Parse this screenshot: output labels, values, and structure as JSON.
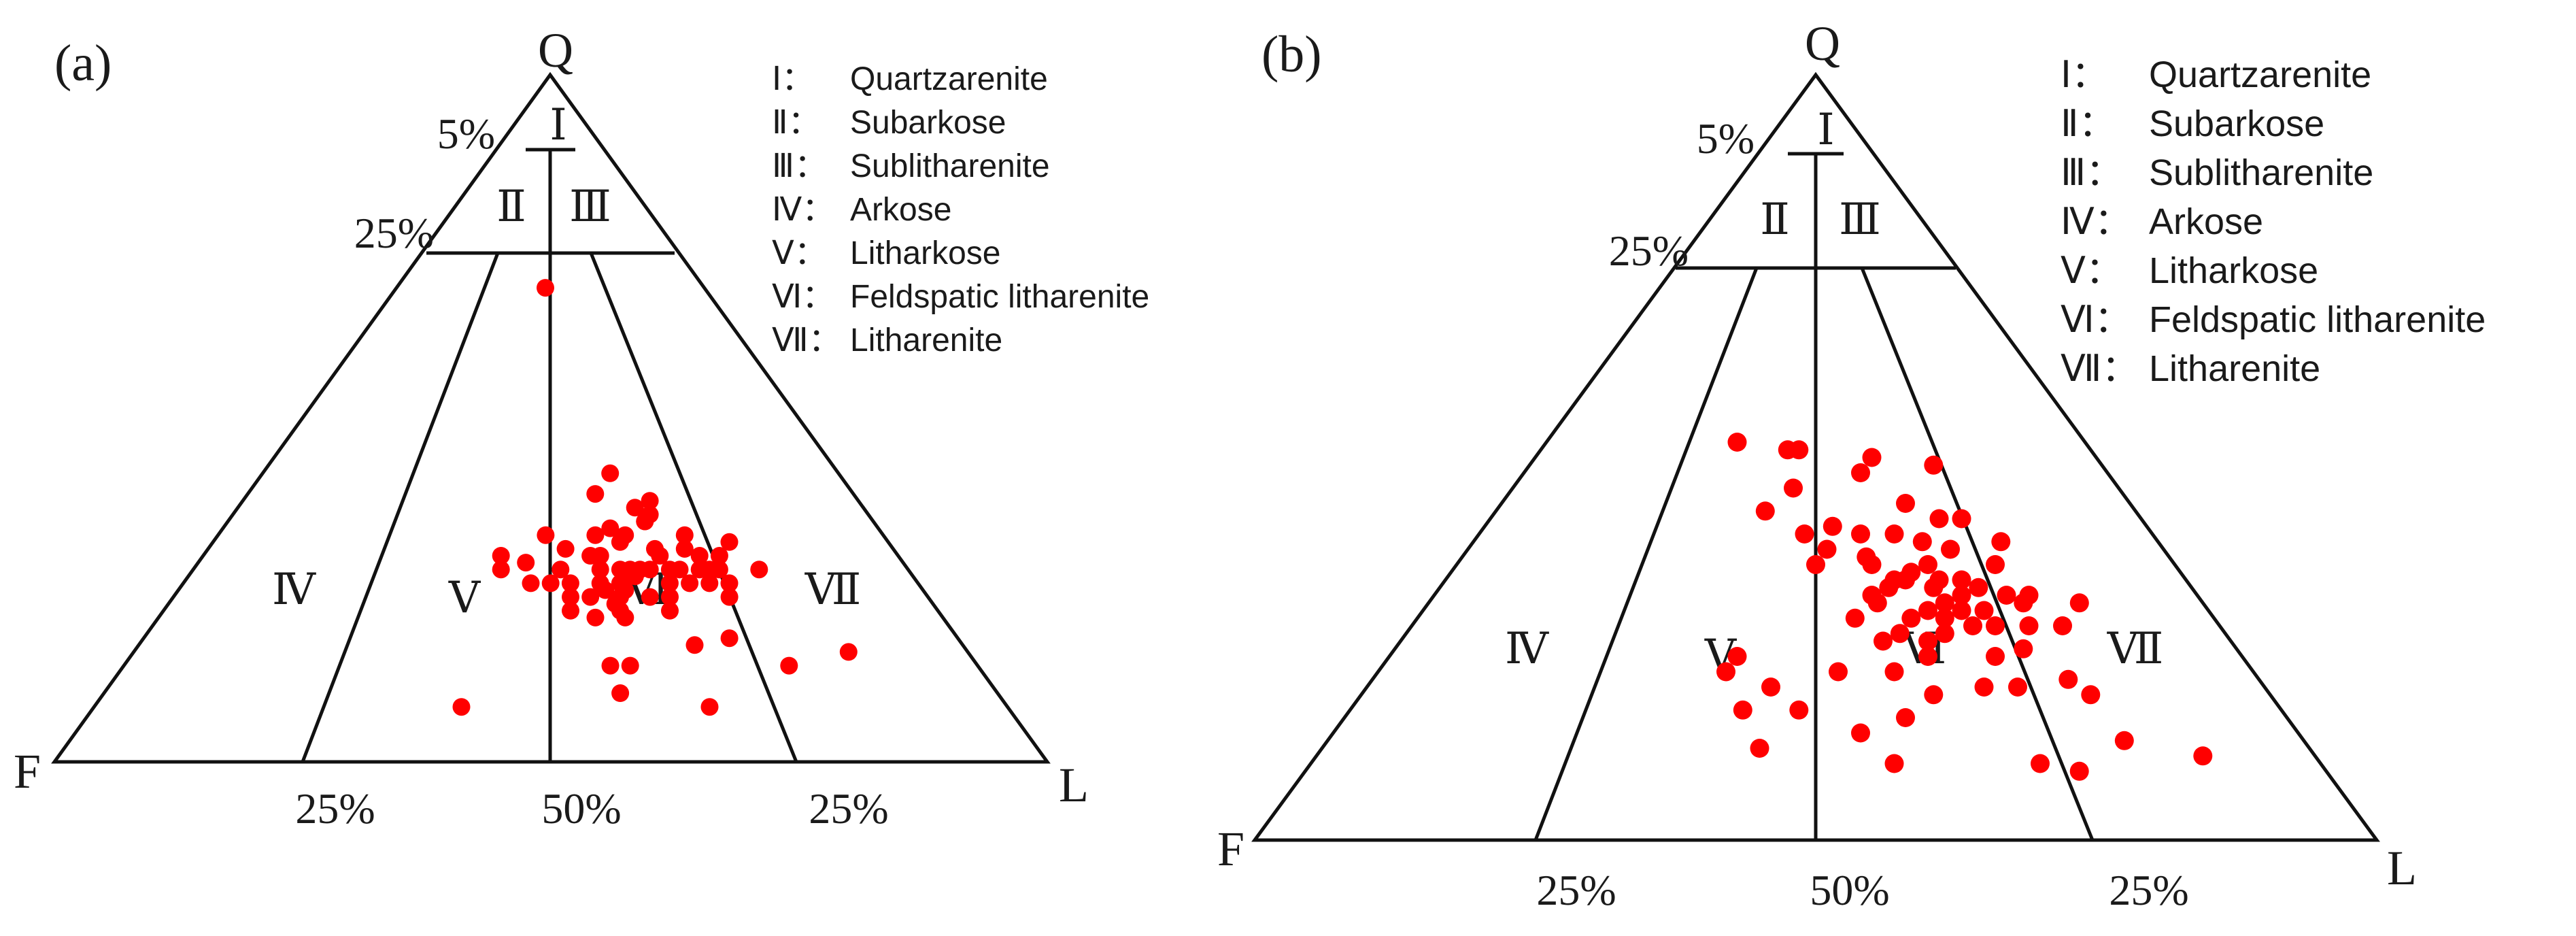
{
  "chart_data": [
    {
      "type": "scatter",
      "subtype": "ternary",
      "panel_label": "(a)",
      "vertices": {
        "top": "Q",
        "left": "F",
        "right": "L"
      },
      "region_labels": [
        "Ⅰ",
        "Ⅱ",
        "Ⅲ",
        "Ⅳ",
        "Ⅴ",
        "Ⅵ",
        "Ⅶ"
      ],
      "boundary_labels": {
        "q95": "5%",
        "q75": "25%",
        "left": "25%",
        "mid": "50%",
        "right": "25%"
      },
      "legend": [
        {
          "numeral": "Ⅰ：",
          "name": "Quartzarenite"
        },
        {
          "numeral": "Ⅱ：",
          "name": "Subarkose"
        },
        {
          "numeral": "Ⅲ：",
          "name": "Sublitharenite"
        },
        {
          "numeral": "Ⅳ：",
          "name": "Arkose"
        },
        {
          "numeral": "Ⅴ：",
          "name": "Litharkose"
        },
        {
          "numeral": "Ⅵ：",
          "name": "Feldspatic litharenite"
        },
        {
          "numeral": "Ⅶ：",
          "name": "Litharenite"
        }
      ],
      "point_color": "#ff0000",
      "points_qfl": [
        [
          69,
          16,
          15
        ],
        [
          42,
          23,
          35
        ],
        [
          39,
          26,
          35
        ],
        [
          38,
          21,
          41
        ],
        [
          37,
          23,
          40
        ],
        [
          35,
          23,
          42
        ],
        [
          35,
          23,
          42
        ],
        [
          34,
          27,
          39
        ],
        [
          36,
          22,
          42
        ],
        [
          33,
          34,
          33
        ],
        [
          33,
          29,
          38
        ],
        [
          33,
          26,
          41
        ],
        [
          32,
          27,
          41
        ],
        [
          33,
          20,
          47
        ],
        [
          32,
          16,
          52
        ],
        [
          31,
          33,
          36
        ],
        [
          30,
          31,
          39
        ],
        [
          30,
          30,
          40
        ],
        [
          31,
          24,
          45
        ],
        [
          30,
          24,
          46
        ],
        [
          31,
          21,
          48
        ],
        [
          30,
          20,
          50
        ],
        [
          30,
          18,
          52
        ],
        [
          30,
          40,
          30
        ],
        [
          28,
          41,
          31
        ],
        [
          29,
          38,
          33
        ],
        [
          28,
          35,
          37
        ],
        [
          28,
          31,
          41
        ],
        [
          28,
          29,
          43
        ],
        [
          28,
          28,
          44
        ],
        [
          28,
          27,
          45
        ],
        [
          28,
          26,
          46
        ],
        [
          28,
          24,
          48
        ],
        [
          28,
          23,
          49
        ],
        [
          28,
          21,
          51
        ],
        [
          28,
          20,
          52
        ],
        [
          28,
          19,
          53
        ],
        [
          28,
          15,
          57
        ],
        [
          26,
          39,
          35
        ],
        [
          26,
          37,
          37
        ],
        [
          26,
          35,
          39
        ],
        [
          26,
          32,
          42
        ],
        [
          26,
          30,
          44
        ],
        [
          27,
          28,
          45
        ],
        [
          26,
          25,
          49
        ],
        [
          26,
          23,
          51
        ],
        [
          26,
          21,
          53
        ],
        [
          26,
          19,
          55
        ],
        [
          25,
          32,
          43
        ],
        [
          25,
          30,
          45
        ],
        [
          24,
          36,
          40
        ],
        [
          24,
          34,
          42
        ],
        [
          24,
          31,
          45
        ],
        [
          24,
          28,
          48
        ],
        [
          24,
          26,
          50
        ],
        [
          24,
          20,
          56
        ],
        [
          23,
          32,
          45
        ],
        [
          22,
          37,
          41
        ],
        [
          22,
          32,
          46
        ],
        [
          22,
          27,
          51
        ],
        [
          21,
          35,
          44
        ],
        [
          21,
          32,
          47
        ],
        [
          18,
          23,
          59
        ],
        [
          17,
          27,
          56
        ],
        [
          16,
          12,
          72
        ],
        [
          14,
          37,
          49
        ],
        [
          14,
          35,
          51
        ],
        [
          14,
          19,
          67
        ],
        [
          10,
          38,
          52
        ],
        [
          8,
          55,
          37
        ],
        [
          8,
          30,
          62
        ]
      ]
    },
    {
      "type": "scatter",
      "subtype": "ternary",
      "panel_label": "(b)",
      "vertices": {
        "top": "Q",
        "left": "F",
        "right": "L"
      },
      "region_labels": [
        "Ⅰ",
        "Ⅱ",
        "Ⅲ",
        "Ⅳ",
        "Ⅴ",
        "Ⅵ",
        "Ⅶ"
      ],
      "boundary_labels": {
        "q95": "5%",
        "q75": "25%",
        "left": "25%",
        "mid": "50%",
        "right": "25%"
      },
      "legend": [
        {
          "numeral": "Ⅰ：",
          "name": "Quartzarenite"
        },
        {
          "numeral": "Ⅱ：",
          "name": "Subarkose"
        },
        {
          "numeral": "Ⅲ：",
          "name": "Sublitharenite"
        },
        {
          "numeral": "Ⅳ：",
          "name": "Arkose"
        },
        {
          "numeral": "Ⅴ：",
          "name": "Litharkose"
        },
        {
          "numeral": "Ⅵ：",
          "name": "Feldspatic litharenite"
        },
        {
          "numeral": "Ⅶ：",
          "name": "Litharenite"
        }
      ],
      "point_color": "#ff0000",
      "points_qfl": [
        [
          52,
          31,
          17
        ],
        [
          51,
          27,
          22
        ],
        [
          51,
          26,
          23
        ],
        [
          50,
          20,
          30
        ],
        [
          48,
          22,
          30
        ],
        [
          49,
          15,
          36
        ],
        [
          46,
          29,
          25
        ],
        [
          44,
          20,
          36
        ],
        [
          43,
          33,
          24
        ],
        [
          42,
          16,
          42
        ],
        [
          42,
          18,
          40
        ],
        [
          41,
          28,
          31
        ],
        [
          40,
          31,
          29
        ],
        [
          40,
          23,
          37
        ],
        [
          40,
          26,
          34
        ],
        [
          39,
          21,
          40
        ],
        [
          39,
          14,
          47
        ],
        [
          38,
          30,
          32
        ],
        [
          37,
          27,
          36
        ],
        [
          38,
          19,
          43
        ],
        [
          36,
          27,
          37
        ],
        [
          36,
          32,
          32
        ],
        [
          36,
          16,
          48
        ],
        [
          36,
          22,
          42
        ],
        [
          35,
          24,
          41
        ],
        [
          34,
          20,
          46
        ],
        [
          34,
          26,
          40
        ],
        [
          34,
          22,
          44
        ],
        [
          34,
          25,
          41
        ],
        [
          33,
          19,
          48
        ],
        [
          33,
          23,
          44
        ],
        [
          33,
          27,
          40
        ],
        [
          32,
          15,
          53
        ],
        [
          32,
          29,
          39
        ],
        [
          32,
          17,
          51
        ],
        [
          32,
          21,
          47
        ],
        [
          31,
          23,
          46
        ],
        [
          31,
          16,
          53
        ],
        [
          31,
          11,
          58
        ],
        [
          31,
          29,
          40
        ],
        [
          30,
          20,
          50
        ],
        [
          30,
          22,
          48
        ],
        [
          30,
          25,
          45
        ],
        [
          29,
          32,
          39
        ],
        [
          29,
          27,
          44
        ],
        [
          29,
          24,
          47
        ],
        [
          28,
          20,
          52
        ],
        [
          28,
          17,
          55
        ],
        [
          28,
          14,
          58
        ],
        [
          28,
          22,
          50
        ],
        [
          27,
          29,
          44
        ],
        [
          27,
          25,
          48
        ],
        [
          26,
          31,
          43
        ],
        [
          26,
          27,
          47
        ],
        [
          25,
          19,
          56
        ],
        [
          24,
          22,
          54
        ],
        [
          24,
          28,
          48
        ],
        [
          24,
          45,
          31
        ],
        [
          22,
          32,
          46
        ],
        [
          22,
          37,
          41
        ],
        [
          22,
          47,
          31
        ],
        [
          21,
          17,
          62
        ],
        [
          20,
          25,
          55
        ],
        [
          20,
          22,
          58
        ],
        [
          20,
          44,
          36
        ],
        [
          19,
          30,
          51
        ],
        [
          19,
          16,
          65
        ],
        [
          17,
          43,
          40
        ],
        [
          17,
          48,
          35
        ],
        [
          16,
          34,
          50
        ],
        [
          14,
          39,
          47
        ],
        [
          13,
          16,
          71
        ],
        [
          12,
          49,
          39
        ],
        [
          11,
          10,
          79
        ],
        [
          10,
          38,
          52
        ],
        [
          10,
          25,
          65
        ],
        [
          9,
          22,
          69
        ]
      ]
    }
  ]
}
